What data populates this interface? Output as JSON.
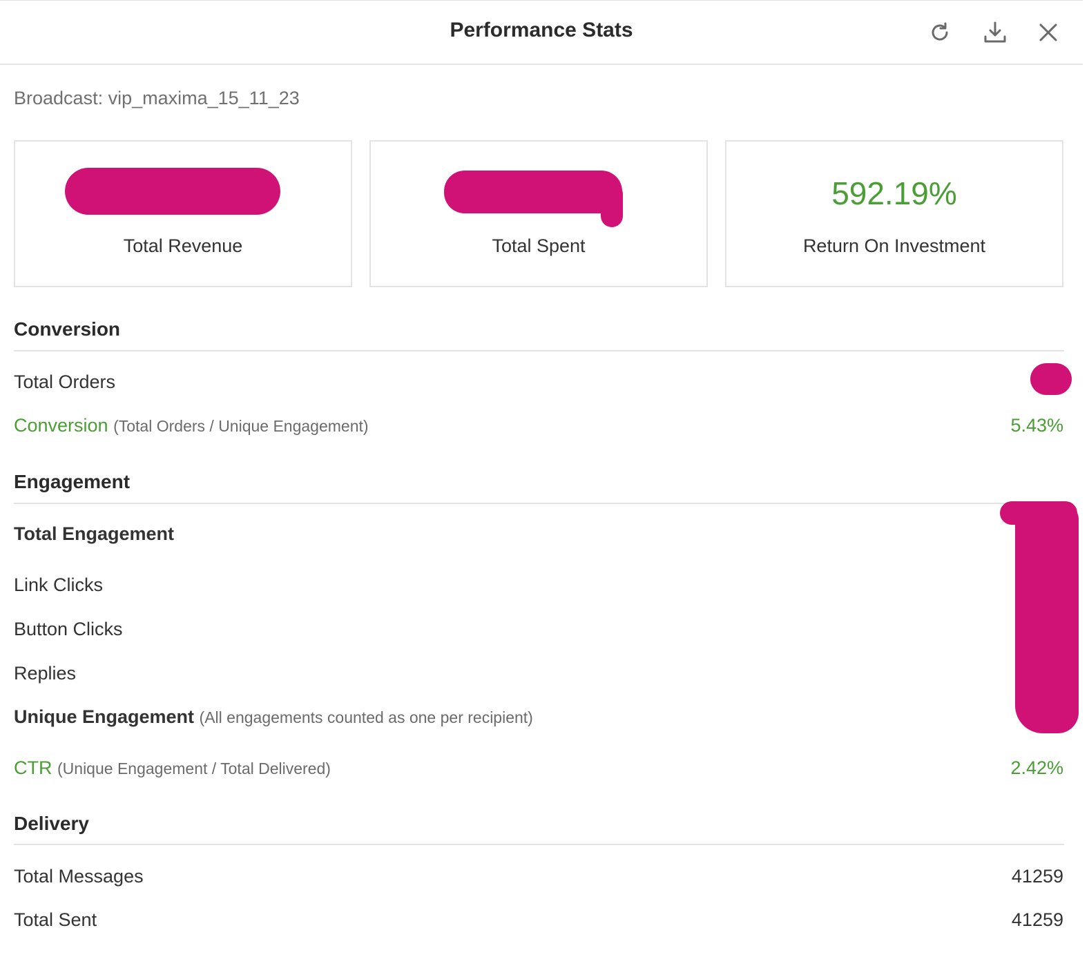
{
  "header": {
    "title": "Performance Stats",
    "refresh_icon": "refresh-icon",
    "download_icon": "download-icon",
    "close_icon": "close-icon"
  },
  "broadcast": "Broadcast: vip_maxima_15_11_23",
  "cards": [
    {
      "label": "Total Revenue",
      "value": "",
      "redacted": true
    },
    {
      "label": "Total Spent",
      "value": "",
      "redacted": true
    },
    {
      "label": "Return On Investment",
      "value": "592.19%",
      "redacted": false
    }
  ],
  "conversion": {
    "title": "Conversion",
    "total_orders_label": "Total Orders",
    "conversion_label": "Conversion",
    "conversion_note": "(Total Orders / Unique Engagement)",
    "conversion_value": "5.43%"
  },
  "engagement": {
    "title": "Engagement",
    "total_engagement_label": "Total Engagement",
    "link_clicks_label": "Link Clicks",
    "button_clicks_label": "Button Clicks",
    "replies_label": "Replies",
    "unique_engagement_label": "Unique Engagement",
    "unique_engagement_note": "(All engagements counted as one per recipient)",
    "ctr_label": "CTR",
    "ctr_note": "(Unique Engagement / Total Delivered)",
    "ctr_value": "2.42%"
  },
  "delivery": {
    "title": "Delivery",
    "total_messages_label": "Total Messages",
    "total_messages_value": "41259",
    "total_sent_label": "Total Sent",
    "total_sent_value": "41259"
  },
  "colors": {
    "accent_green": "#4a9e35",
    "redaction_magenta": "#d01276"
  }
}
